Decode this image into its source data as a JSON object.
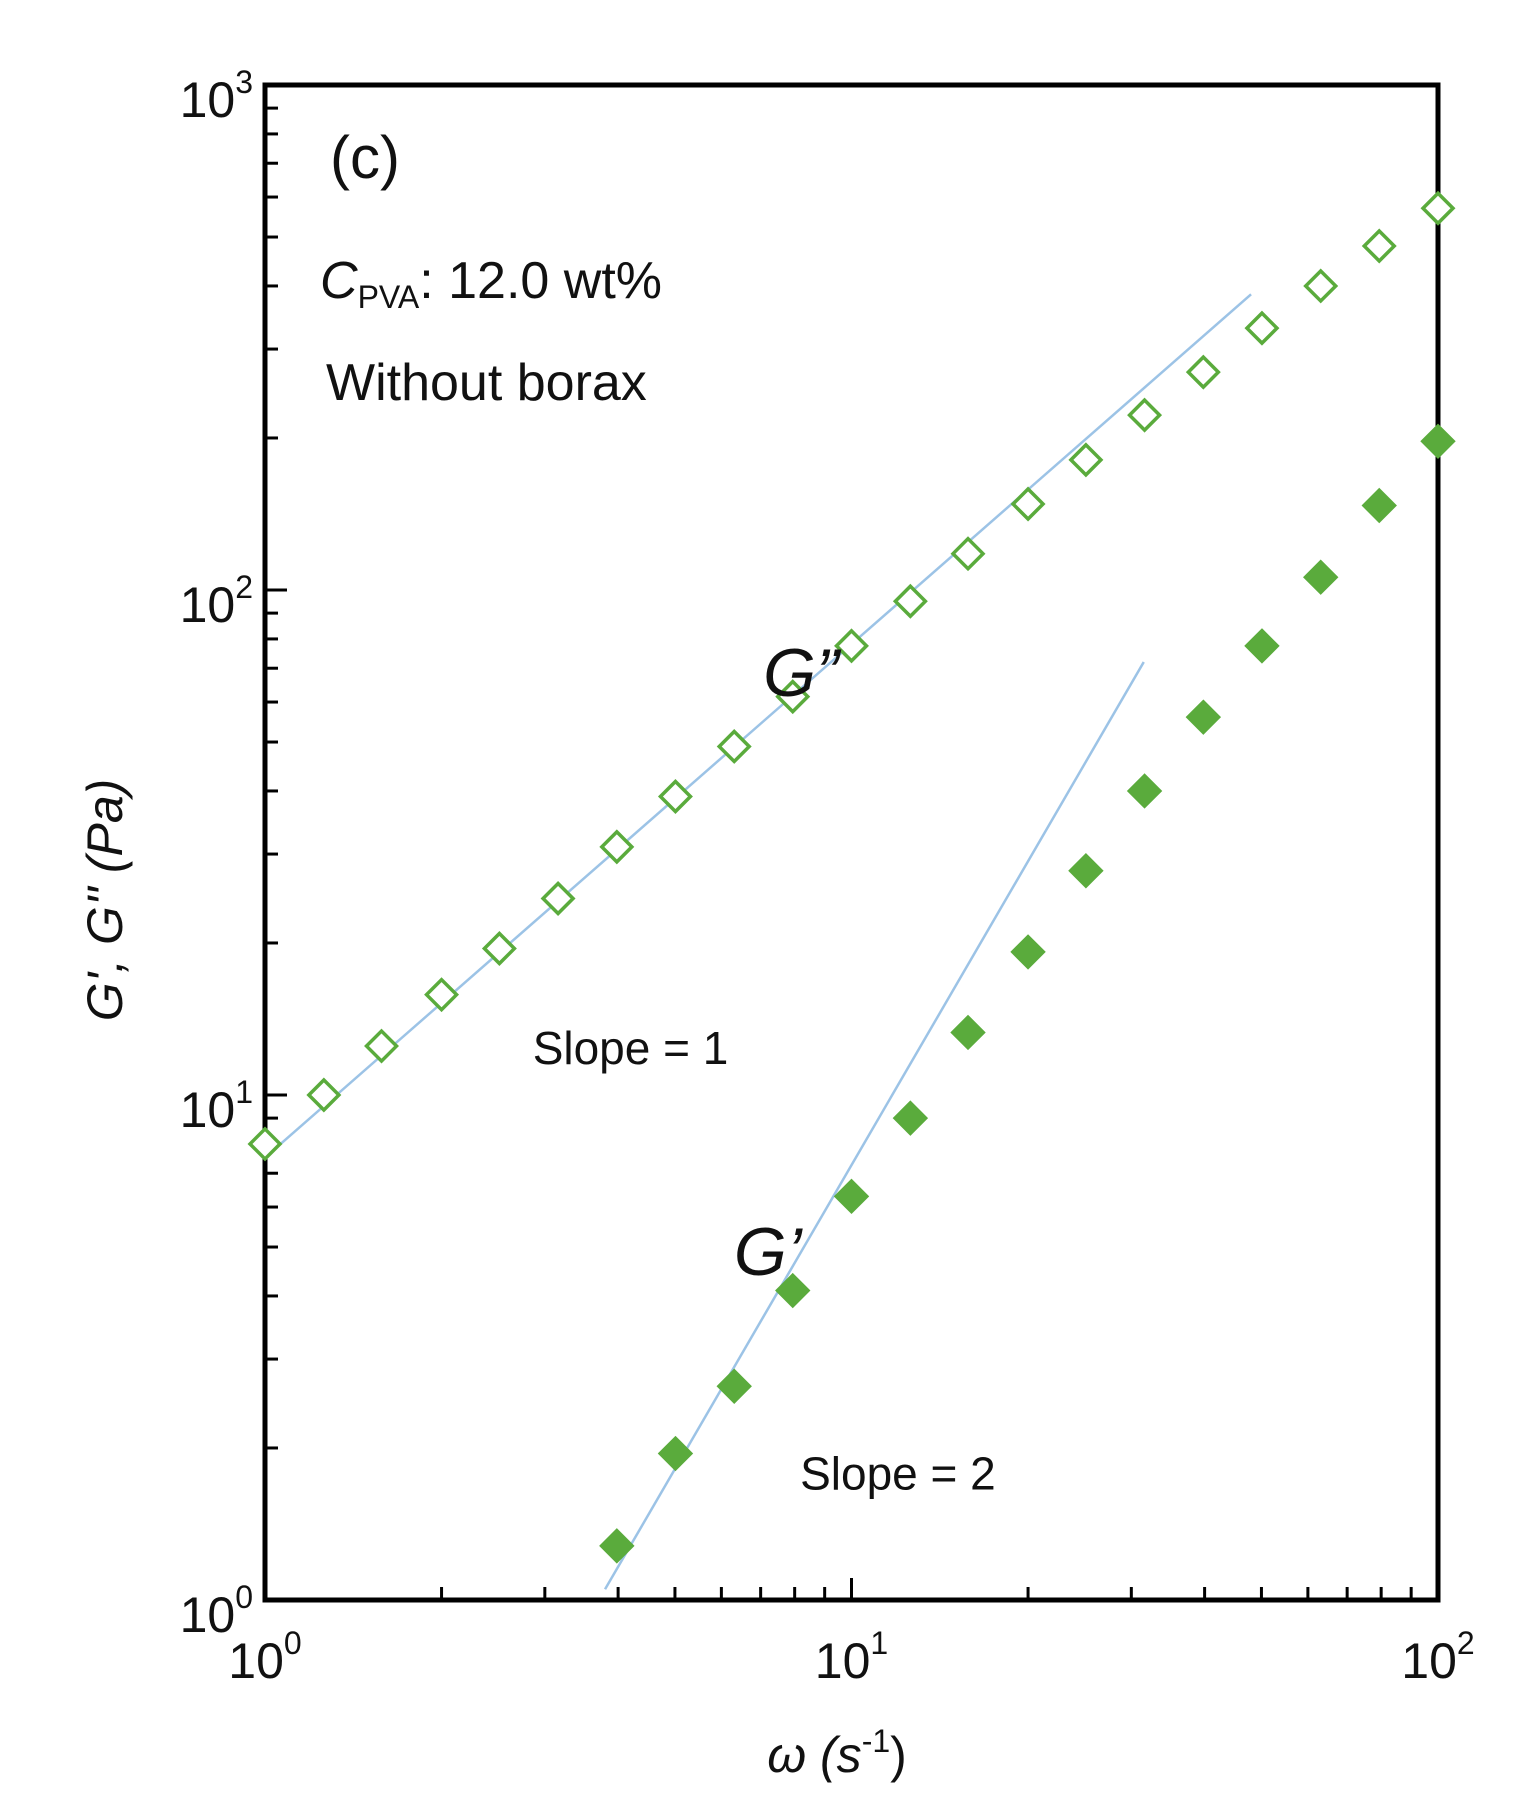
{
  "chart_data": {
    "type": "scatter",
    "panel_label": "(c)",
    "annotation_line1_var": "C",
    "annotation_line1_sub": "PVA",
    "annotation_line1_rest": ": 12.0 wt%",
    "annotation_line2": "Without borax",
    "xlabel": "ω (s",
    "xlabel_exp": "-1",
    "xlabel_close": ")",
    "ylabel": "G', G'' (Pa)",
    "xscale": "log",
    "yscale": "log",
    "xlim": [
      1,
      100
    ],
    "ylim": [
      1,
      1000
    ],
    "x_ticks": [
      {
        "base": "10",
        "exp": "0",
        "value": 1
      },
      {
        "base": "10",
        "exp": "1",
        "value": 10
      },
      {
        "base": "10",
        "exp": "2",
        "value": 100
      }
    ],
    "y_ticks": [
      {
        "base": "10",
        "exp": "0",
        "value": 1
      },
      {
        "base": "10",
        "exp": "1",
        "value": 10
      },
      {
        "base": "10",
        "exp": "2",
        "value": 100
      },
      {
        "base": "10",
        "exp": "3",
        "value": 1000
      }
    ],
    "colors": {
      "series": "#5aab3c",
      "fit_line": "#9cc3e6",
      "axis": "#000000"
    },
    "series": [
      {
        "name": "G''",
        "marker": "diamond-open",
        "x": [
          1.0,
          1.26,
          1.58,
          2.0,
          2.51,
          3.16,
          3.98,
          5.01,
          6.31,
          7.94,
          10.0,
          12.6,
          15.8,
          20.0,
          25.1,
          31.6,
          39.8,
          50.1,
          63.1,
          79.4,
          100.0
        ],
        "y": [
          8.0,
          10.0,
          12.5,
          15.8,
          19.5,
          24.5,
          31.0,
          39.0,
          49.0,
          61.5,
          77.5,
          95.0,
          118,
          148,
          181,
          222,
          270,
          330,
          400,
          480,
          570
        ]
      },
      {
        "name": "G'",
        "marker": "diamond-filled",
        "x": [
          3.98,
          5.01,
          6.31,
          7.94,
          10.0,
          12.6,
          15.8,
          20.0,
          25.1,
          31.6,
          39.8,
          50.1,
          63.1,
          79.4,
          100.0
        ],
        "y": [
          1.28,
          1.95,
          2.65,
          4.1,
          6.3,
          9.0,
          13.3,
          19.2,
          27.8,
          40.0,
          56.0,
          77.5,
          106,
          147,
          197
        ]
      }
    ],
    "fit_lines": [
      {
        "label": "Slope = 1",
        "x": [
          1.05,
          48.0
        ],
        "y": [
          7.9,
          385
        ]
      },
      {
        "label": "Slope = 2",
        "x": [
          3.8,
          31.5
        ],
        "y": [
          1.05,
          72
        ]
      }
    ],
    "series_labels": [
      {
        "main": "G",
        "primes": "”",
        "x": 8.2,
        "y": 70
      },
      {
        "main": "G",
        "primes": "’",
        "x": 7.2,
        "y": 5.0
      }
    ],
    "slope_labels": [
      {
        "text": "Slope = 1",
        "x": 4.2,
        "y": 12.4
      },
      {
        "text": "Slope = 2",
        "x": 12.0,
        "y": 1.78
      }
    ]
  }
}
